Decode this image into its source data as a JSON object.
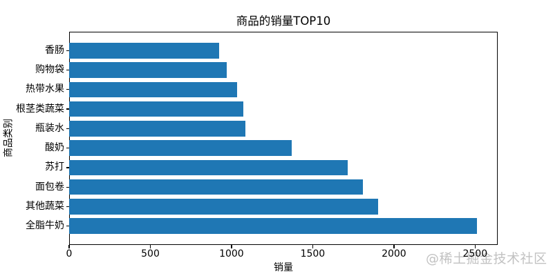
{
  "chart_data": {
    "type": "bar",
    "orientation": "horizontal",
    "title": "商品的销量TOP10",
    "xlabel": "销量",
    "ylabel": "商品类别",
    "categories": [
      "香肠",
      "购物袋",
      "热带水果",
      "根茎类蔬菜",
      "瓶装水",
      "酸奶",
      "苏打",
      "面包卷",
      "其他蔬菜",
      "全脂牛奶"
    ],
    "values": [
      924,
      969,
      1032,
      1072,
      1087,
      1372,
      1715,
      1809,
      1903,
      2513
    ],
    "xlim": [
      0,
      2639
    ],
    "xticks": [
      0,
      500,
      1000,
      1500,
      2000,
      2500
    ],
    "bar_color": "#1f77b4",
    "axis_color": "#000000",
    "grid": false,
    "legend_position": "none",
    "categories_order": "top-to-bottom"
  },
  "watermark": {
    "text": "@稀土掘金技术社区",
    "color": "#c2c2c2"
  }
}
